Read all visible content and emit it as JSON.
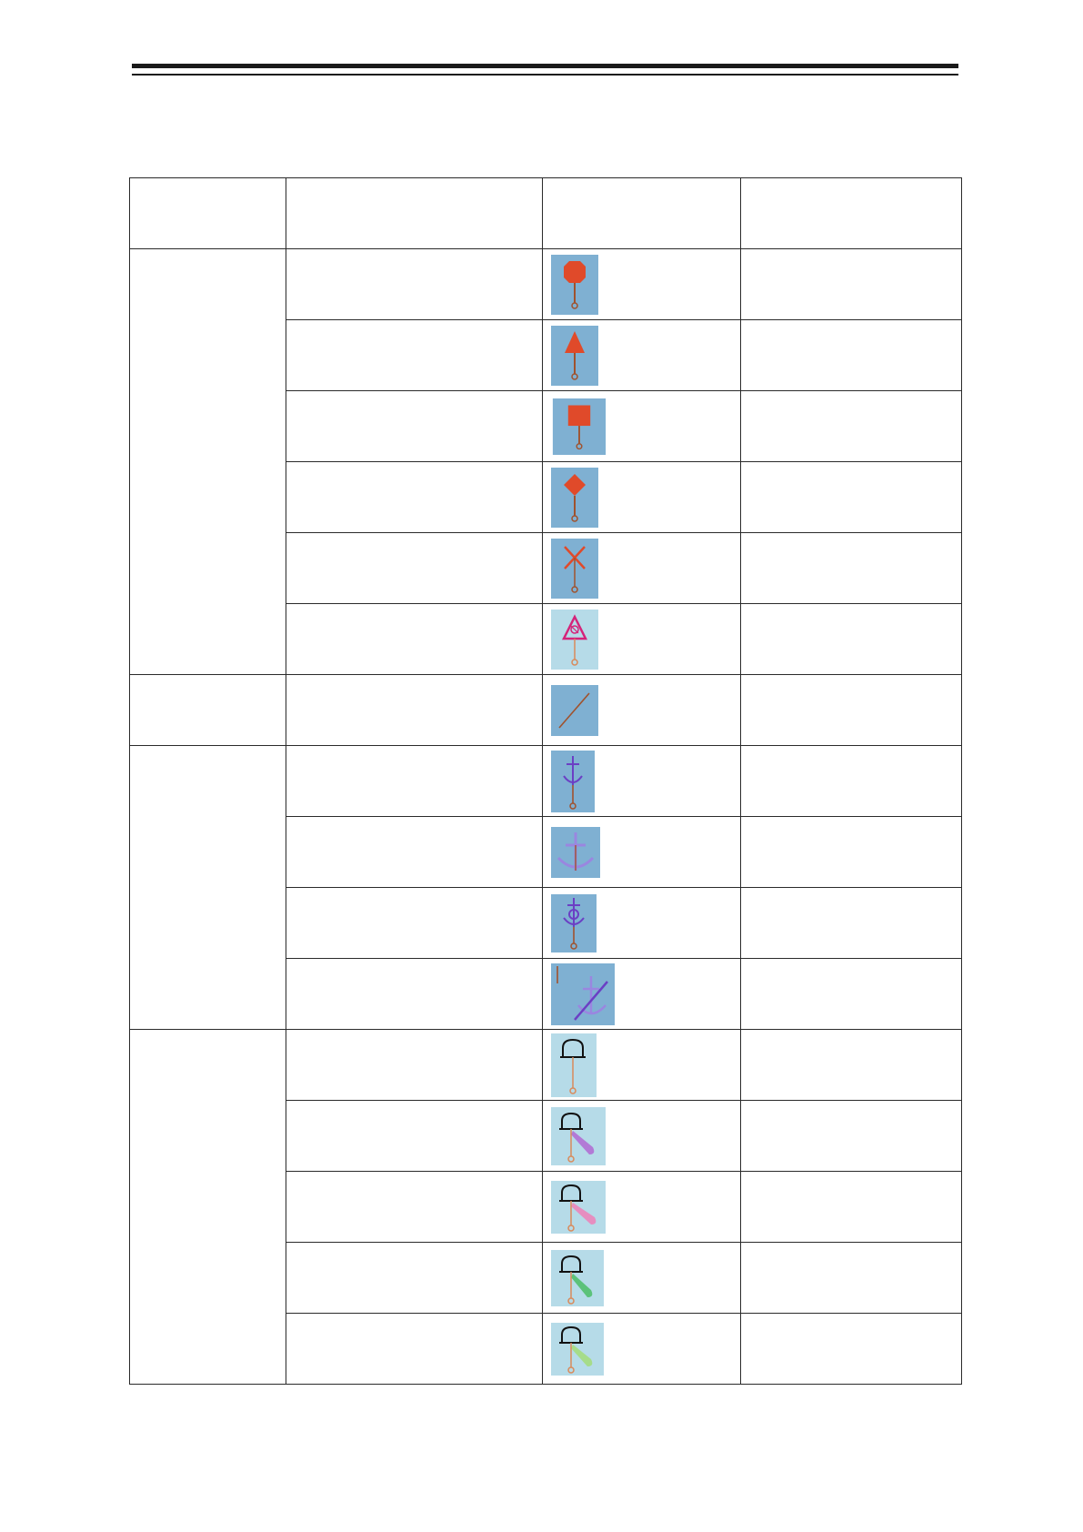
{
  "table": {
    "header": {
      "col1": "",
      "col2": "",
      "col3": "",
      "col4": ""
    },
    "groups": [
      {
        "label": "",
        "rows": [
          {
            "name": "",
            "symbol": "buoy-red-octagon-icon",
            "remark": ""
          },
          {
            "name": "",
            "symbol": "buoy-red-triangle-icon",
            "remark": ""
          },
          {
            "name": "",
            "symbol": "buoy-red-square-icon",
            "remark": ""
          },
          {
            "name": "",
            "symbol": "buoy-red-diamond-icon",
            "remark": ""
          },
          {
            "name": "",
            "symbol": "buoy-red-cross-icon",
            "remark": ""
          },
          {
            "name": "",
            "symbol": "buoy-magenta-warning-triangle-icon",
            "remark": ""
          }
        ]
      },
      {
        "label": "",
        "rows": [
          {
            "name": "",
            "symbol": "diagonal-line-icon",
            "remark": ""
          }
        ]
      },
      {
        "label": "",
        "rows": [
          {
            "name": "",
            "symbol": "anchor-small-icon",
            "remark": ""
          },
          {
            "name": "",
            "symbol": "anchor-large-icon",
            "remark": ""
          },
          {
            "name": "",
            "symbol": "anchor-circle-icon",
            "remark": ""
          },
          {
            "name": "",
            "symbol": "anchor-prohibited-icon",
            "remark": ""
          }
        ]
      },
      {
        "label": "",
        "rows": [
          {
            "name": "",
            "symbol": "light-station-icon",
            "remark": ""
          },
          {
            "name": "",
            "symbol": "light-station-violet-flare-icon",
            "remark": ""
          },
          {
            "name": "",
            "symbol": "light-station-pink-flare-icon",
            "remark": ""
          },
          {
            "name": "",
            "symbol": "light-station-green-flare-icon",
            "remark": ""
          },
          {
            "name": "",
            "symbol": "light-station-lightgreen-flare-icon",
            "remark": ""
          }
        ]
      }
    ]
  },
  "colors": {
    "dark_blue_bg": "#7fb0d2",
    "light_blue_bg": "#b6dbe8",
    "buoy_red": "#e04a2a",
    "stem": "#a0522d",
    "magenta": "#d4247a",
    "anchor_purple": "#6b3fc4",
    "anchor_lavender": "#9a86e0",
    "flare_violet": "#b27ad6",
    "flare_pink": "#e68ec0",
    "flare_green": "#5cc27a",
    "flare_lightgreen": "#a6dc8a"
  }
}
